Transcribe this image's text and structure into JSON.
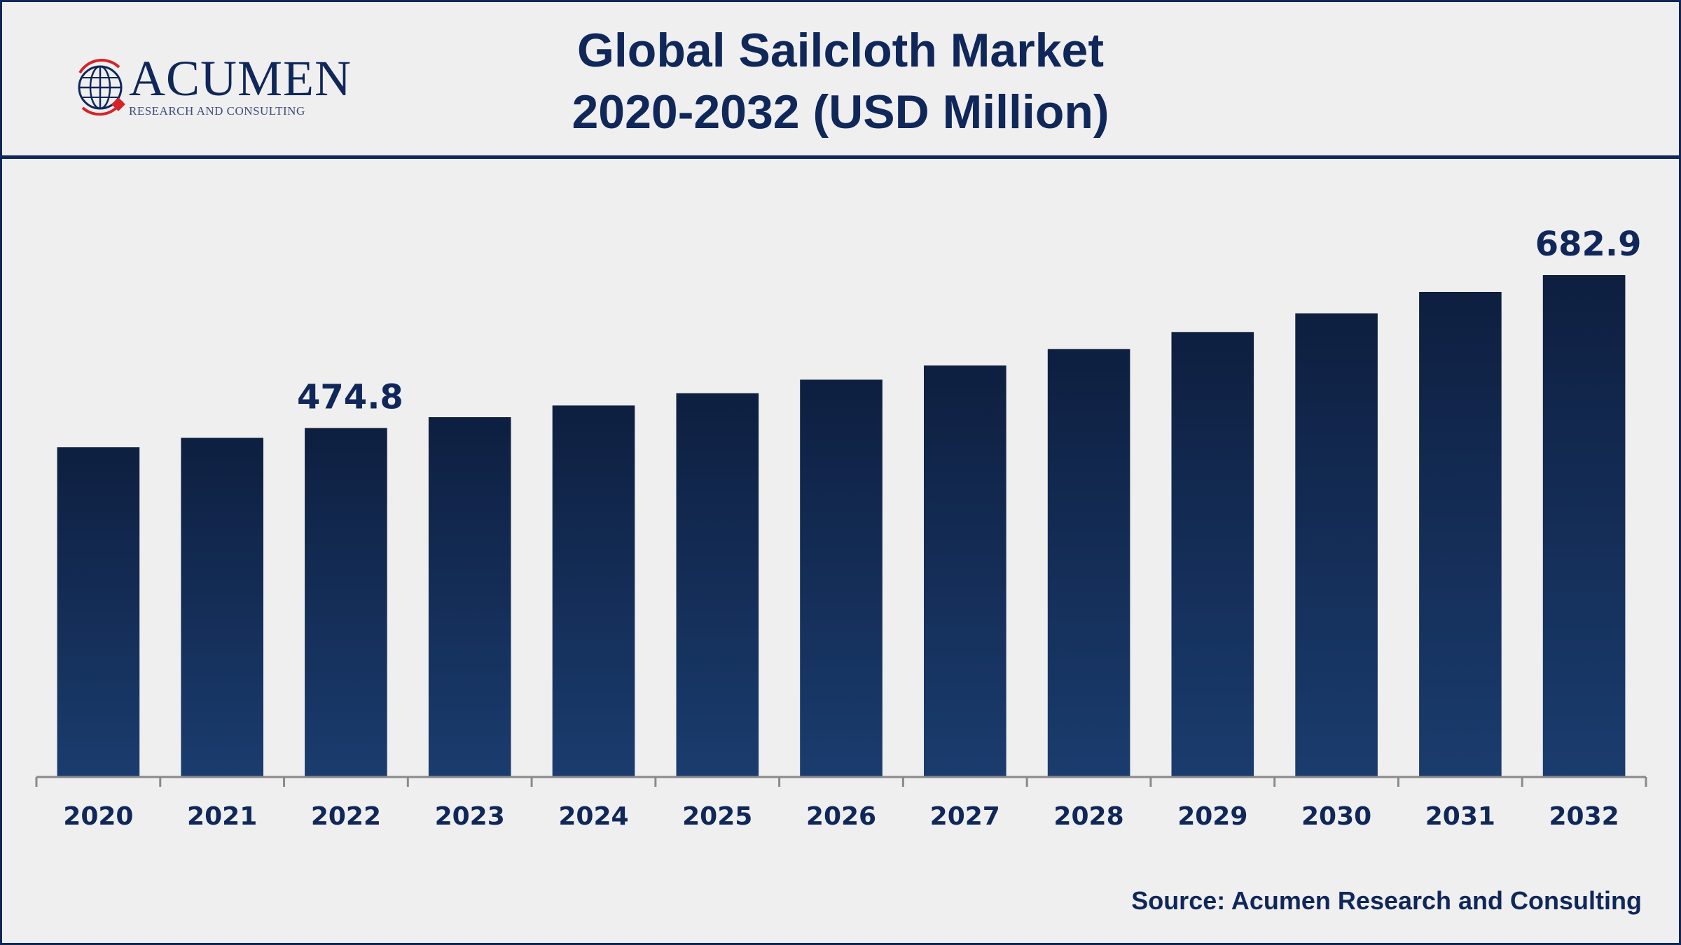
{
  "title": {
    "line1": "Global Sailcloth Market",
    "line2": "2020-2032 (USD Million)"
  },
  "logo": {
    "name": "ACUMEN",
    "subtitle": "RESEARCH AND CONSULTING",
    "icon": "globe-icon"
  },
  "source": "Source: Acumen Research and Consulting",
  "colors": {
    "brand_navy": "#10275a",
    "bar_top": "#0e1f40",
    "bar_bottom": "#1a3c6e",
    "accent_red": "#d4242a",
    "background": "#efefef"
  },
  "chart_data": {
    "type": "bar",
    "categories": [
      "2020",
      "2021",
      "2022",
      "2023",
      "2024",
      "2025",
      "2026",
      "2027",
      "2028",
      "2029",
      "2030",
      "2031",
      "2032"
    ],
    "values": [
      448.5,
      461.4,
      474.8,
      489.5,
      505.4,
      522.1,
      540.5,
      559.8,
      582.2,
      605.4,
      630.9,
      660.0,
      682.9
    ],
    "data_labels": [
      "",
      "",
      "474.8",
      "",
      "",
      "",
      "",
      "",
      "",
      "",
      "",
      "",
      "682.9"
    ],
    "title": "Global Sailcloth Market 2020-2032 (USD Million)",
    "ylim": [
      0,
      700
    ],
    "grid": false,
    "legend": "none"
  }
}
